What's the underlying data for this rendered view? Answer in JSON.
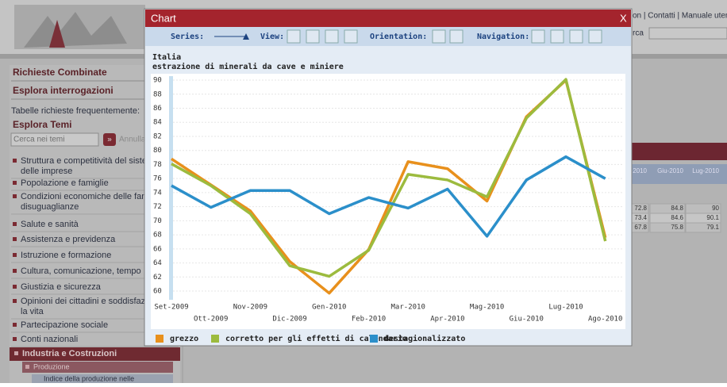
{
  "header": {
    "links": "on | Contatti | Manuale uten",
    "search_label": "rca"
  },
  "sidebar": {
    "combined": "Richieste Combinate",
    "explore_queries": "Esplora interrogazioni",
    "frequent": "Tabelle richieste frequentemente:",
    "themes": "Esplora Temi",
    "search_placeholder": "Cerca nei temi",
    "search_button": "»",
    "cancel": "Annulla",
    "topics": [
      [
        "Struttura e competitività del siste",
        "delle imprese"
      ],
      [
        "Popolazione e famiglie"
      ],
      [
        "Condizioni economiche delle fam",
        "disuguaglianze"
      ],
      [
        "Salute e sanità"
      ],
      [
        "Assistenza e previdenza"
      ],
      [
        "Istruzione e formazione"
      ],
      [
        "Cultura, comunicazione, tempo l"
      ],
      [
        "Giustizia e sicurezza"
      ],
      [
        "Opinioni dei cittadini e soddisfaz",
        "la vita"
      ],
      [
        "Partecipazione sociale"
      ],
      [
        "Conti nazionali"
      ]
    ],
    "active_topic": "Industria e Costruzioni",
    "sub_topic": "Produzione",
    "sub_item": "Indice della produzione nelle"
  },
  "table": {
    "headers": [
      "2010",
      "Giu-2010",
      "Lug-2010"
    ],
    "rows": [
      [
        72.8,
        84.8,
        90
      ],
      [
        73.4,
        84.6,
        90.1
      ],
      [
        67.8,
        75.8,
        79.1
      ]
    ]
  },
  "modal": {
    "title": "Chart",
    "close": "X",
    "toolbar": {
      "series": "Series:",
      "view": "View:",
      "orientation": "Orientation:",
      "navigation": "Navigation:"
    }
  },
  "chart_data": {
    "type": "line",
    "title": "Italia",
    "subtitle": "estrazione di minerali da cave e miniere",
    "categories": [
      "Set-2009",
      "Ott-2009",
      "Nov-2009",
      "Dic-2009",
      "Gen-2010",
      "Feb-2010",
      "Mar-2010",
      "Apr-2010",
      "Mag-2010",
      "Giu-2010",
      "Lug-2010",
      "Ago-2010"
    ],
    "series": [
      {
        "name": "grezzo",
        "color": "#e8901c",
        "values": [
          78.8,
          75.1,
          71.4,
          64.2,
          59.7,
          65.9,
          78.4,
          77.4,
          72.8,
          84.8,
          90,
          67.6
        ]
      },
      {
        "name": "corretto per gli effetti di calendario",
        "color": "#9cbb3e",
        "values": [
          78.1,
          75.0,
          71.0,
          63.6,
          62.1,
          65.8,
          76.6,
          75.8,
          73.4,
          84.6,
          90.1,
          67.1
        ]
      },
      {
        "name": "destagionalizzato",
        "color": "#2b8fca",
        "values": [
          75.0,
          71.9,
          74.3,
          74.3,
          71.0,
          73.3,
          71.8,
          74.5,
          67.8,
          75.8,
          79.1,
          76.0
        ]
      }
    ],
    "ylim": [
      59,
      90.5
    ],
    "yticks": [
      60,
      62,
      64,
      66,
      68,
      70,
      72,
      74,
      76,
      78,
      80,
      82,
      84,
      86,
      88,
      90
    ],
    "grid": true,
    "legend": "bottom"
  }
}
